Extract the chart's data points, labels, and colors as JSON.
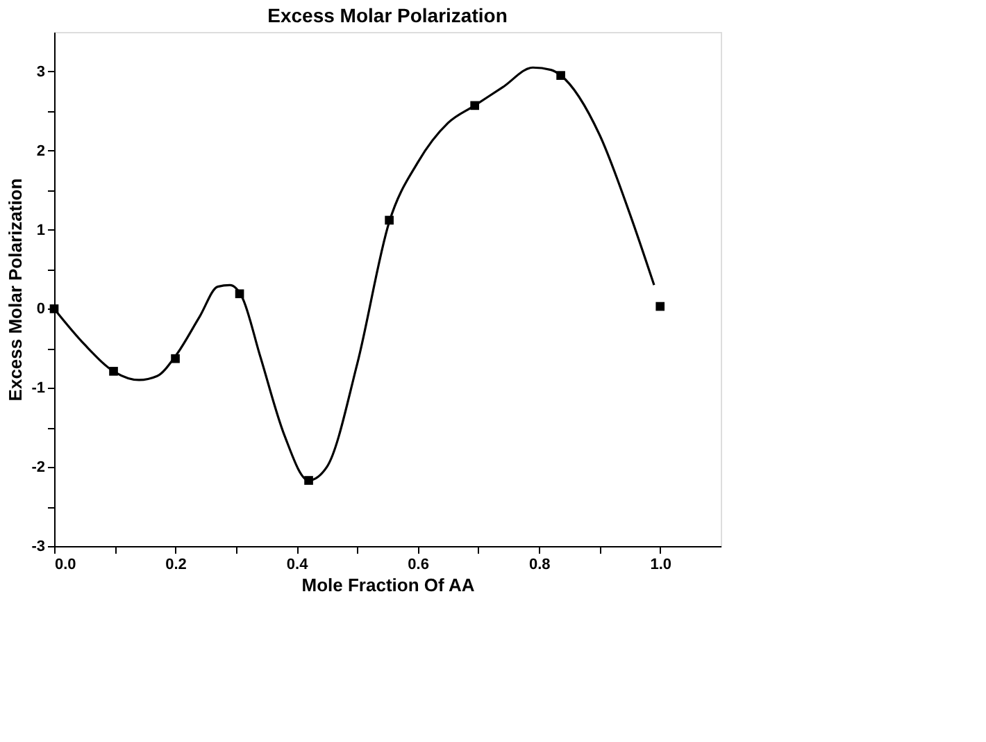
{
  "chart_data": {
    "type": "scatter",
    "title": "Excess Molar Polarization",
    "xlabel": "Mole Fraction Of AA",
    "ylabel": "Excess Molar Polarization",
    "xlim": [
      0,
      1.1
    ],
    "ylim": [
      -3,
      3.5
    ],
    "xticks": [
      {
        "value": 0,
        "label": "0.0"
      },
      {
        "value": 0.1,
        "label": null
      },
      {
        "value": 0.2,
        "label": "0.2"
      },
      {
        "value": 0.3,
        "label": null
      },
      {
        "value": 0.4,
        "label": "0.4"
      },
      {
        "value": 0.5,
        "label": null
      },
      {
        "value": 0.6,
        "label": "0.6"
      },
      {
        "value": 0.7,
        "label": null
      },
      {
        "value": 0.8,
        "label": "0.8"
      },
      {
        "value": 0.9,
        "label": null
      },
      {
        "value": 1.0,
        "label": "1.0"
      }
    ],
    "yticks": [
      -3,
      {
        "value": -2.5,
        "label": null
      },
      -2,
      {
        "value": -1.5,
        "label": null
      },
      -1,
      {
        "value": -0.5,
        "label": null
      },
      0,
      {
        "value": 0.5,
        "label": null
      },
      1,
      {
        "value": 1.5,
        "label": null
      },
      2,
      {
        "value": 2.5,
        "label": null
      },
      3
    ],
    "grid": false,
    "series": [
      {
        "color": "#000000",
        "marker": "square",
        "x": [
          0,
          0.098,
          0.2,
          0.306,
          0.42,
          0.553,
          0.694,
          0.836,
          1.0
        ],
        "values": [
          0,
          -0.79,
          -0.63,
          0.19,
          -2.17,
          1.12,
          2.57,
          2.95,
          0.03
        ]
      },
      {
        "type": "line",
        "color": "#000000",
        "marker": "none",
        "line_style": "solid",
        "x": [
          0,
          0.05,
          0.1,
          0.14,
          0.17,
          0.2,
          0.24,
          0.27,
          0.29,
          0.31,
          0.34,
          0.38,
          0.42,
          0.45,
          0.5,
          0.553,
          0.6,
          0.65,
          0.694,
          0.74,
          0.79,
          0.82,
          0.836,
          0.9,
          0.95,
          0.99
        ],
        "values": [
          0,
          -0.45,
          -0.8,
          -0.9,
          -0.85,
          -0.6,
          -0.1,
          0.28,
          0.3,
          0.15,
          -0.6,
          -1.6,
          -2.17,
          -2.0,
          -0.7,
          1.1,
          1.85,
          2.35,
          2.57,
          2.8,
          3.05,
          3.02,
          2.95,
          2.2,
          1.2,
          0.3
        ]
      }
    ]
  }
}
